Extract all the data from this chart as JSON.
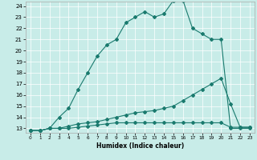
{
  "xlabel": "Humidex (Indice chaleur)",
  "bg_color": "#c8ece8",
  "line_color": "#1a7a6e",
  "grid_color": "#ffffff",
  "xlim": [
    -0.5,
    23.5
  ],
  "ylim": [
    12.6,
    24.4
  ],
  "xticks": [
    0,
    1,
    2,
    3,
    4,
    5,
    6,
    7,
    8,
    9,
    10,
    11,
    12,
    13,
    14,
    15,
    16,
    17,
    18,
    19,
    20,
    21,
    22,
    23
  ],
  "yticks": [
    13,
    14,
    15,
    16,
    17,
    18,
    19,
    20,
    21,
    22,
    23,
    24
  ],
  "line1_x": [
    0,
    1,
    2,
    3,
    4,
    5,
    6,
    7,
    8,
    9,
    10,
    11,
    12,
    13,
    14,
    15,
    16,
    17,
    18,
    19,
    20,
    21,
    22,
    23
  ],
  "line1_y": [
    12.8,
    12.8,
    13.0,
    14.0,
    14.8,
    16.5,
    18.0,
    19.5,
    20.5,
    21.0,
    22.5,
    23.0,
    23.5,
    23.0,
    23.3,
    24.5,
    24.5,
    22.0,
    21.5,
    21.0,
    21.0,
    13.0,
    13.0,
    13.0
  ],
  "line2_x": [
    0,
    1,
    2,
    3,
    4,
    5,
    6,
    7,
    8,
    9,
    10,
    11,
    12,
    13,
    14,
    15,
    16,
    17,
    18,
    19,
    20,
    21,
    22,
    23
  ],
  "line2_y": [
    12.8,
    12.8,
    13.0,
    13.0,
    13.2,
    13.4,
    13.5,
    13.6,
    13.8,
    14.0,
    14.2,
    14.4,
    14.5,
    14.6,
    14.8,
    15.0,
    15.5,
    16.0,
    16.5,
    17.0,
    17.5,
    15.2,
    13.1,
    13.1
  ],
  "line3_x": [
    0,
    1,
    2,
    3,
    4,
    5,
    6,
    7,
    8,
    9,
    10,
    11,
    12,
    13,
    14,
    15,
    16,
    17,
    18,
    19,
    20,
    21,
    22,
    23
  ],
  "line3_y": [
    12.8,
    12.8,
    13.0,
    13.0,
    13.0,
    13.1,
    13.2,
    13.3,
    13.4,
    13.5,
    13.5,
    13.5,
    13.5,
    13.5,
    13.5,
    13.5,
    13.5,
    13.5,
    13.5,
    13.5,
    13.5,
    13.1,
    13.1,
    13.1
  ]
}
